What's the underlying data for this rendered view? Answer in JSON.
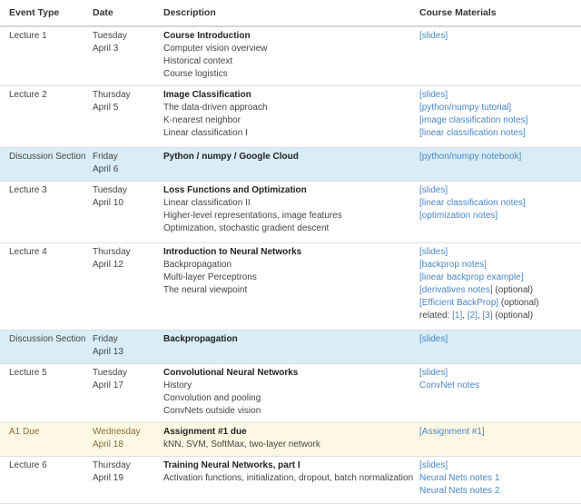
{
  "headers": {
    "type": "Event Type",
    "date": "Date",
    "description": "Description",
    "materials": "Course Materials"
  },
  "colors": {
    "discussion_bg": "#d9edf7",
    "due_bg": "#fcf8e3",
    "link": "#4a86c8"
  },
  "rows": [
    {
      "type": "Lecture 1",
      "day": "Tuesday",
      "date": "April 3",
      "title": "Course Introduction",
      "desc": [
        "Computer vision overview",
        "Historical context",
        "Course logistics"
      ],
      "materials": [
        {
          "link": "[slides]"
        }
      ]
    },
    {
      "type": "Lecture 2",
      "day": "Thursday",
      "date": "April 5",
      "title": "Image Classification",
      "desc": [
        "The data-driven approach",
        "K-nearest neighbor",
        "Linear classification I"
      ],
      "materials": [
        {
          "link": "[slides]"
        },
        {
          "link": "[python/numpy tutorial]"
        },
        {
          "link": "[image classification notes]"
        },
        {
          "link": "[linear classification notes]"
        }
      ]
    },
    {
      "type": "Discussion Section",
      "day": "Friday",
      "date": "April 6",
      "title": "Python / numpy / Google Cloud",
      "desc": [],
      "materials": [
        {
          "link": "[python/numpy notebook]"
        }
      ]
    },
    {
      "type": "Lecture 3",
      "day": "Tuesday",
      "date": "April 10",
      "title": "Loss Functions and Optimization",
      "desc": [
        "Linear classification II",
        "Higher-level representations, image features",
        "Optimization, stochastic gradient descent"
      ],
      "materials": [
        {
          "link": "[slides]"
        },
        {
          "link": "[linear classification notes]"
        },
        {
          "link": "[optimization notes]"
        }
      ]
    },
    {
      "type": "Lecture 4",
      "day": "Thursday",
      "date": "April 12",
      "title": "Introduction to Neural Networks",
      "desc": [
        "Backpropagation",
        "Multi-layer Perceptrons",
        "The neural viewpoint"
      ],
      "materials": [
        {
          "link": "[slides]"
        },
        {
          "link": "[backprop notes]"
        },
        {
          "link": "[linear backprop example]"
        },
        {
          "link": "[derivatives notes]",
          "suffix": " (optional)"
        },
        {
          "link": "[Efficient BackProp]",
          "suffix": " (optional)"
        },
        {
          "prefix": "related: ",
          "links": [
            "[1]",
            "[2]",
            "[3]"
          ],
          "suffix": " (optional)"
        }
      ]
    },
    {
      "type": "Discussion Section",
      "day": "Friday",
      "date": "April 13",
      "title": "Backpropagation",
      "desc": [],
      "materials": [
        {
          "link": "[slides]"
        }
      ]
    },
    {
      "type": "Lecture 5",
      "day": "Tuesday",
      "date": "April 17",
      "title": "Convolutional Neural Networks",
      "desc": [
        "History",
        "Convolution and pooling",
        "ConvNets outside vision"
      ],
      "materials": [
        {
          "link": "[slides]"
        },
        {
          "link": "ConvNet notes"
        }
      ]
    },
    {
      "type": "A1 Due",
      "day": "Wednesday",
      "date": "April 18",
      "title": "Assignment #1 due",
      "desc": [
        "kNN, SVM, SoftMax, two-layer network"
      ],
      "materials": [
        {
          "link": "[Assignment #1]"
        }
      ]
    },
    {
      "type": "Lecture 6",
      "day": "Thursday",
      "date": "April 19",
      "title": "Training Neural Networks, part I",
      "desc": [
        "Activation functions, initialization, dropout, batch normalization"
      ],
      "materials": [
        {
          "link": "[slides]"
        },
        {
          "link": "Neural Nets notes 1"
        },
        {
          "link": "Neural Nets notes 2"
        }
      ]
    }
  ]
}
